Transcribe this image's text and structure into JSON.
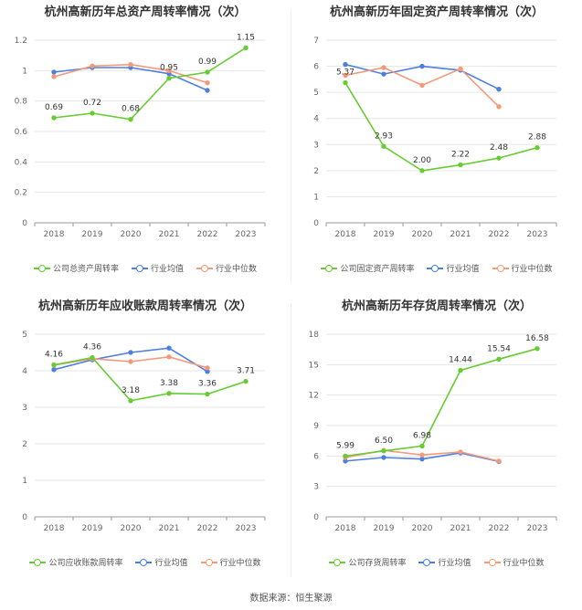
{
  "source": "数据来源：恒生聚源",
  "colors": {
    "company": "#66cc33",
    "avg": "#4c7fe0",
    "median": "#f39a7a",
    "grid": "#e6e6e6",
    "axis": "#999999"
  },
  "chart_data": [
    {
      "type": "line",
      "title": "杭州高新历年总资产周转率情况（次）",
      "categories": [
        "2018",
        "2019",
        "2020",
        "2021",
        "2022",
        "2023"
      ],
      "ylim": [
        0,
        1.2
      ],
      "yticks": [
        "0",
        "0.2",
        "0.4",
        "0.6",
        "0.8",
        "1",
        "1.2"
      ],
      "grid": true,
      "legend_position": "bottom",
      "series": [
        {
          "name": "公司总资产周转率",
          "values": [
            0.69,
            0.72,
            0.68,
            0.95,
            0.99,
            1.15
          ],
          "labels": [
            "0.69",
            "0.72",
            "0.68",
            "0.95",
            "0.99",
            "1.15"
          ]
        },
        {
          "name": "行业均值",
          "values": [
            0.99,
            1.02,
            1.02,
            0.98,
            0.87,
            null
          ]
        },
        {
          "name": "行业中位数",
          "values": [
            0.96,
            1.03,
            1.04,
            1.0,
            0.92,
            null
          ]
        }
      ]
    },
    {
      "type": "line",
      "title": "杭州高新历年固定资产周转率情况（次）",
      "categories": [
        "2018",
        "2019",
        "2020",
        "2021",
        "2022",
        "2023"
      ],
      "ylim": [
        0,
        7
      ],
      "yticks": [
        "0",
        "1",
        "2",
        "3",
        "4",
        "5",
        "6",
        "7"
      ],
      "grid": true,
      "legend_position": "bottom",
      "series": [
        {
          "name": "公司固定资产周转率",
          "values": [
            5.37,
            2.93,
            2.0,
            2.22,
            2.48,
            2.88
          ],
          "labels": [
            "5.37",
            "2.93",
            "2.00",
            "2.22",
            "2.48",
            "2.88"
          ]
        },
        {
          "name": "行业均值",
          "values": [
            6.07,
            5.7,
            6.0,
            5.85,
            5.12,
            null
          ]
        },
        {
          "name": "行业中位数",
          "values": [
            5.65,
            5.95,
            5.27,
            5.9,
            4.45,
            null
          ]
        }
      ]
    },
    {
      "type": "line",
      "title": "杭州高新历年应收账款周转率情况（次）",
      "categories": [
        "2018",
        "2019",
        "2020",
        "2021",
        "2022",
        "2023"
      ],
      "ylim": [
        0,
        5
      ],
      "yticks": [
        "0",
        "1",
        "2",
        "3",
        "4",
        "5"
      ],
      "grid": true,
      "legend_position": "bottom",
      "series": [
        {
          "name": "公司应收账款周转率",
          "values": [
            4.16,
            4.36,
            3.18,
            3.38,
            3.36,
            3.71
          ],
          "labels": [
            "4.16",
            "4.36",
            "3.18",
            "3.38",
            "3.36",
            "3.71"
          ]
        },
        {
          "name": "行业均值",
          "values": [
            4.03,
            4.3,
            4.5,
            4.62,
            3.98,
            null
          ]
        },
        {
          "name": "行业中位数",
          "values": [
            4.15,
            4.33,
            4.25,
            4.38,
            4.08,
            null
          ]
        }
      ]
    },
    {
      "type": "line",
      "title": "杭州高新历年存货周转率情况（次）",
      "categories": [
        "2018",
        "2019",
        "2020",
        "2021",
        "2022",
        "2023"
      ],
      "ylim": [
        0,
        18
      ],
      "yticks": [
        "0",
        "3",
        "6",
        "9",
        "12",
        "15",
        "18"
      ],
      "grid": true,
      "legend_position": "bottom",
      "series": [
        {
          "name": "公司存货周转率",
          "values": [
            5.99,
            6.5,
            6.98,
            14.44,
            15.54,
            16.58
          ],
          "labels": [
            "5.99",
            "6.50",
            "6.98",
            "14.44",
            "15.54",
            "16.58"
          ]
        },
        {
          "name": "行业均值",
          "values": [
            5.5,
            5.85,
            5.7,
            6.3,
            5.45,
            null
          ]
        },
        {
          "name": "行业中位数",
          "values": [
            5.85,
            6.55,
            6.1,
            6.4,
            5.5,
            null
          ]
        }
      ]
    }
  ]
}
